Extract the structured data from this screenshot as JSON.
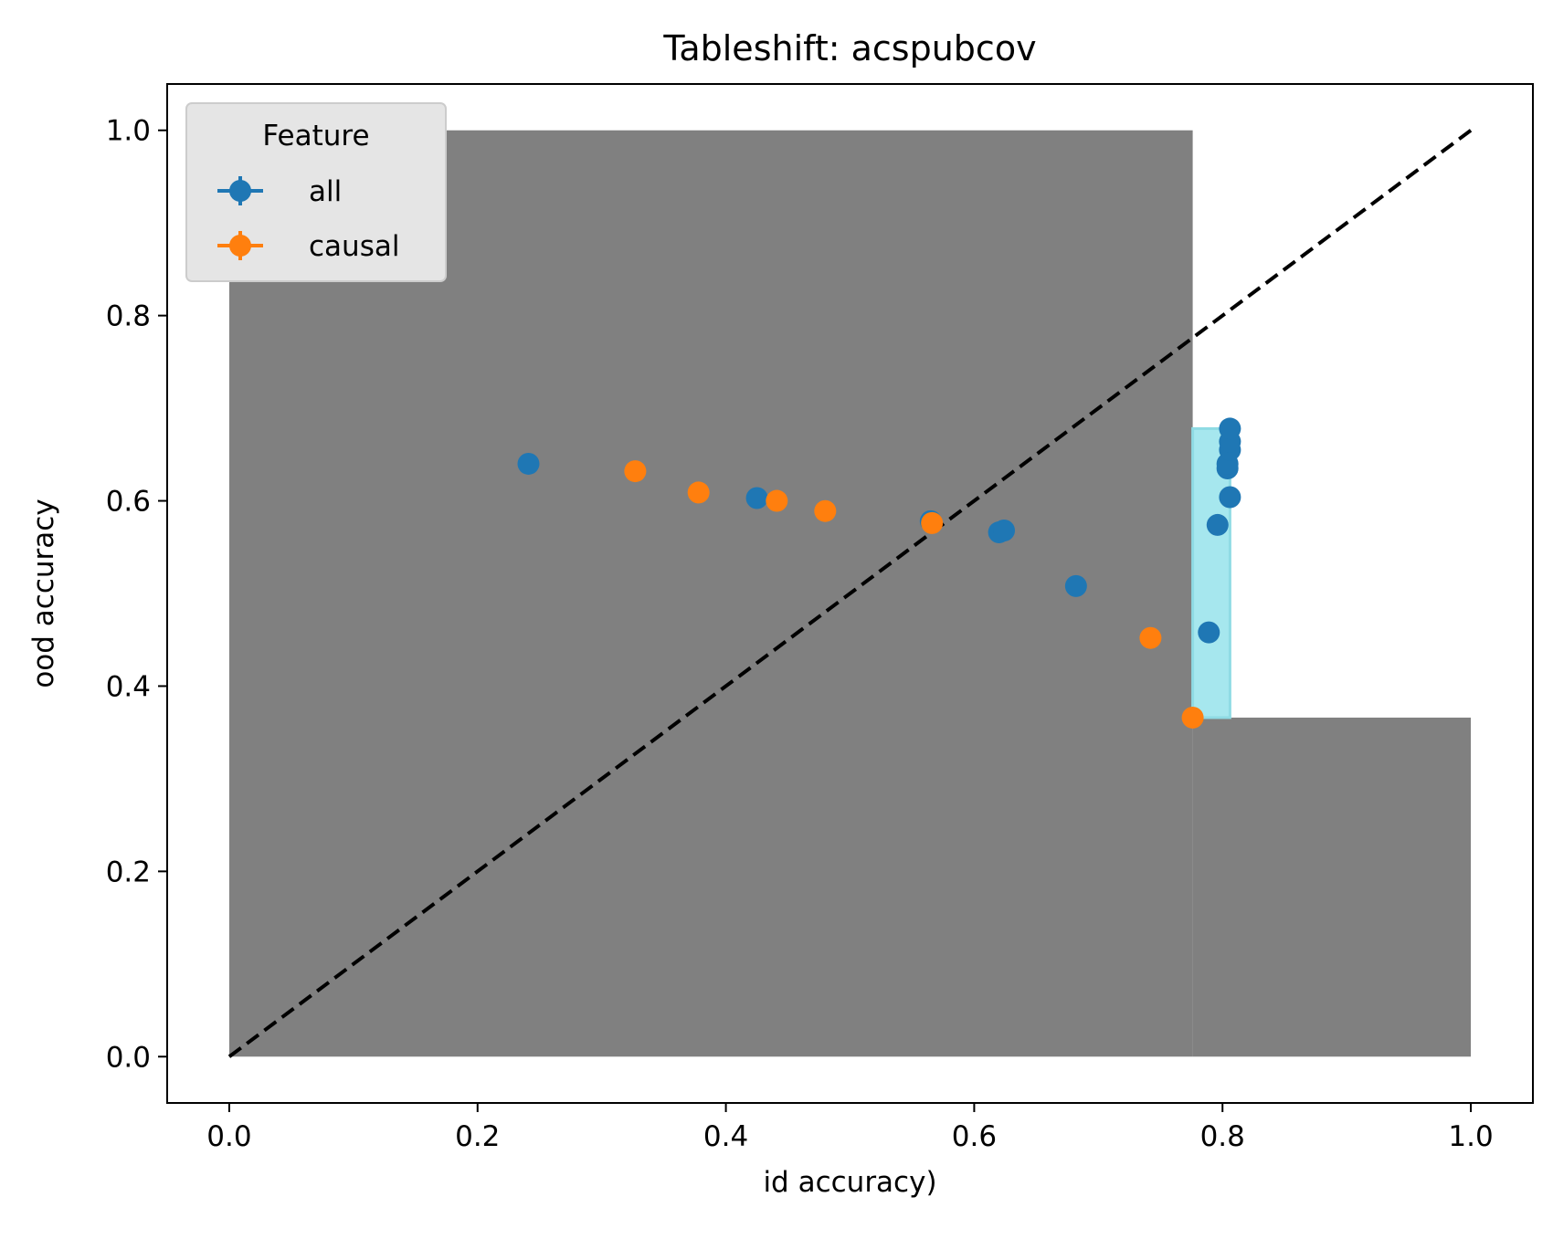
{
  "chart_data": {
    "type": "scatter",
    "title": "Tableshift: acspubcov",
    "xlabel": "id accuracy)",
    "ylabel": "ood accuracy",
    "xlim": [
      -0.05,
      1.05
    ],
    "ylim": [
      -0.05,
      1.05
    ],
    "xticks": [
      "0.0",
      "0.2",
      "0.4",
      "0.6",
      "0.8",
      "1.0"
    ],
    "yticks": [
      "0.0",
      "0.2",
      "0.4",
      "0.6",
      "0.8",
      "1.0"
    ],
    "grid": false,
    "legend": {
      "title": "Feature",
      "placement": "top-left"
    },
    "colors": {
      "all": "#1f77b4",
      "causal": "#ff7f0e",
      "region": "#808080",
      "highlight": "#a6e7ee",
      "diagonal": "#000000"
    },
    "diagonal": {
      "x": [
        0,
        1
      ],
      "y": [
        0,
        1
      ],
      "style": "dashed"
    },
    "regions": [
      {
        "x0": 0.0,
        "x1": 0.776,
        "y0": 0.0,
        "y1": 1.0
      },
      {
        "x0": 0.776,
        "x1": 1.0,
        "y0": 0.0,
        "y1": 0.366
      }
    ],
    "highlight_region": {
      "x0": 0.776,
      "x1": 0.806,
      "y0": 0.366,
      "y1": 0.678
    },
    "series": [
      {
        "name": "all",
        "x": [
          0.241,
          0.425,
          0.565,
          0.62,
          0.624,
          0.682,
          0.789,
          0.796,
          0.806,
          0.804,
          0.804,
          0.806,
          0.806,
          0.806
        ],
        "y": [
          0.64,
          0.603,
          0.578,
          0.566,
          0.568,
          0.508,
          0.458,
          0.574,
          0.604,
          0.635,
          0.64,
          0.655,
          0.664,
          0.678
        ]
      },
      {
        "name": "causal",
        "x": [
          0.327,
          0.378,
          0.441,
          0.48,
          0.566,
          0.742,
          0.776
        ],
        "y": [
          0.632,
          0.609,
          0.6,
          0.589,
          0.576,
          0.452,
          0.366
        ]
      }
    ]
  }
}
